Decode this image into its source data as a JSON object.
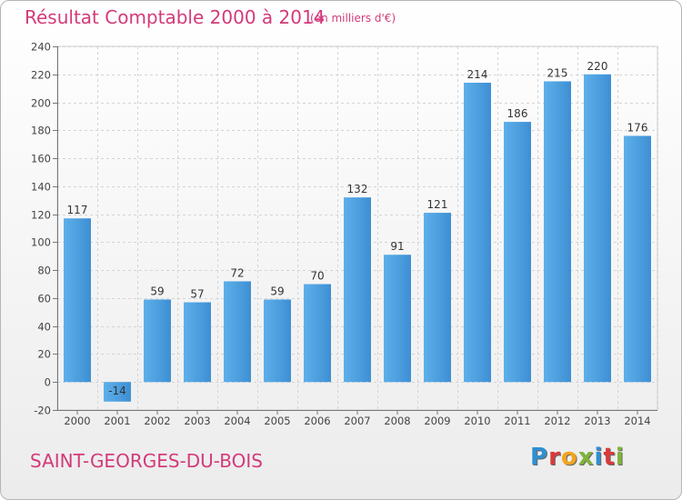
{
  "header": {
    "title": "Résultat Comptable 2000 à 2014",
    "subtitle": "(en milliers d'€)"
  },
  "footer": {
    "commune": "SAINT-GEORGES-DU-BOIS",
    "logo_text": "Proxiti",
    "logo_colors": [
      "#2f8fd1",
      "#d93a3a",
      "#f2a51d",
      "#7fb43a",
      "#2f8fd1",
      "#d93a3a",
      "#7fb43a"
    ]
  },
  "chart_data": {
    "type": "bar",
    "categories": [
      "2000",
      "2001",
      "2002",
      "2003",
      "2004",
      "2005",
      "2006",
      "2007",
      "2008",
      "2009",
      "2010",
      "2011",
      "2012",
      "2013",
      "2014"
    ],
    "values": [
      117,
      -14,
      59,
      57,
      72,
      59,
      70,
      132,
      91,
      121,
      214,
      186,
      215,
      220,
      176
    ],
    "ylim": [
      -20,
      240
    ],
    "yticks": [
      -20,
      0,
      20,
      40,
      60,
      80,
      100,
      120,
      140,
      160,
      180,
      200,
      220,
      240
    ],
    "grid": true,
    "bar_color": "#3d8fd4",
    "bar_color_light": "#5eb0ea"
  }
}
